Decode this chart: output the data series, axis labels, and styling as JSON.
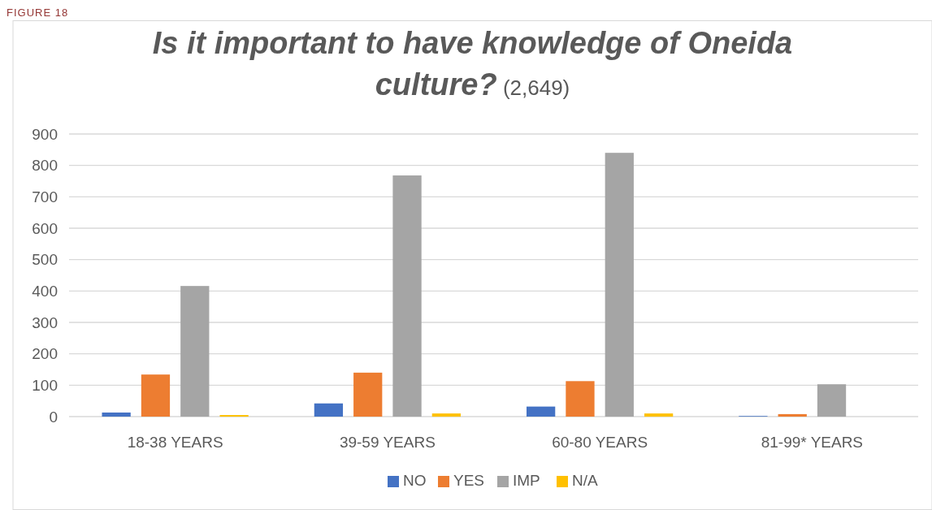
{
  "chart_data": {
    "type": "bar",
    "title": "Is it important to have knowledge of Oneida culture?",
    "subtitle": "(2,649)",
    "annotations": [
      "FIGURE 18"
    ],
    "categories": [
      "18-38 YEARS",
      "39-59 YEARS",
      "60-80 YEARS",
      "81-99* YEARS"
    ],
    "series": [
      {
        "name": "NO",
        "color": "#4472c4",
        "values": [
          13,
          42,
          32,
          2
        ]
      },
      {
        "name": "YES",
        "color": "#ed7d31",
        "values": [
          134,
          140,
          113,
          8
        ]
      },
      {
        "name": "IMP",
        "color": "#a5a5a5",
        "values": [
          416,
          768,
          840,
          103
        ]
      },
      {
        "name": "N/A",
        "color": "#ffc000",
        "values": [
          5,
          10,
          10,
          0
        ]
      }
    ],
    "ylim": [
      0,
      900
    ],
    "yticks": [
      0,
      100,
      200,
      300,
      400,
      500,
      600,
      700,
      800,
      900
    ],
    "grid": "y",
    "legend": "bottom"
  }
}
